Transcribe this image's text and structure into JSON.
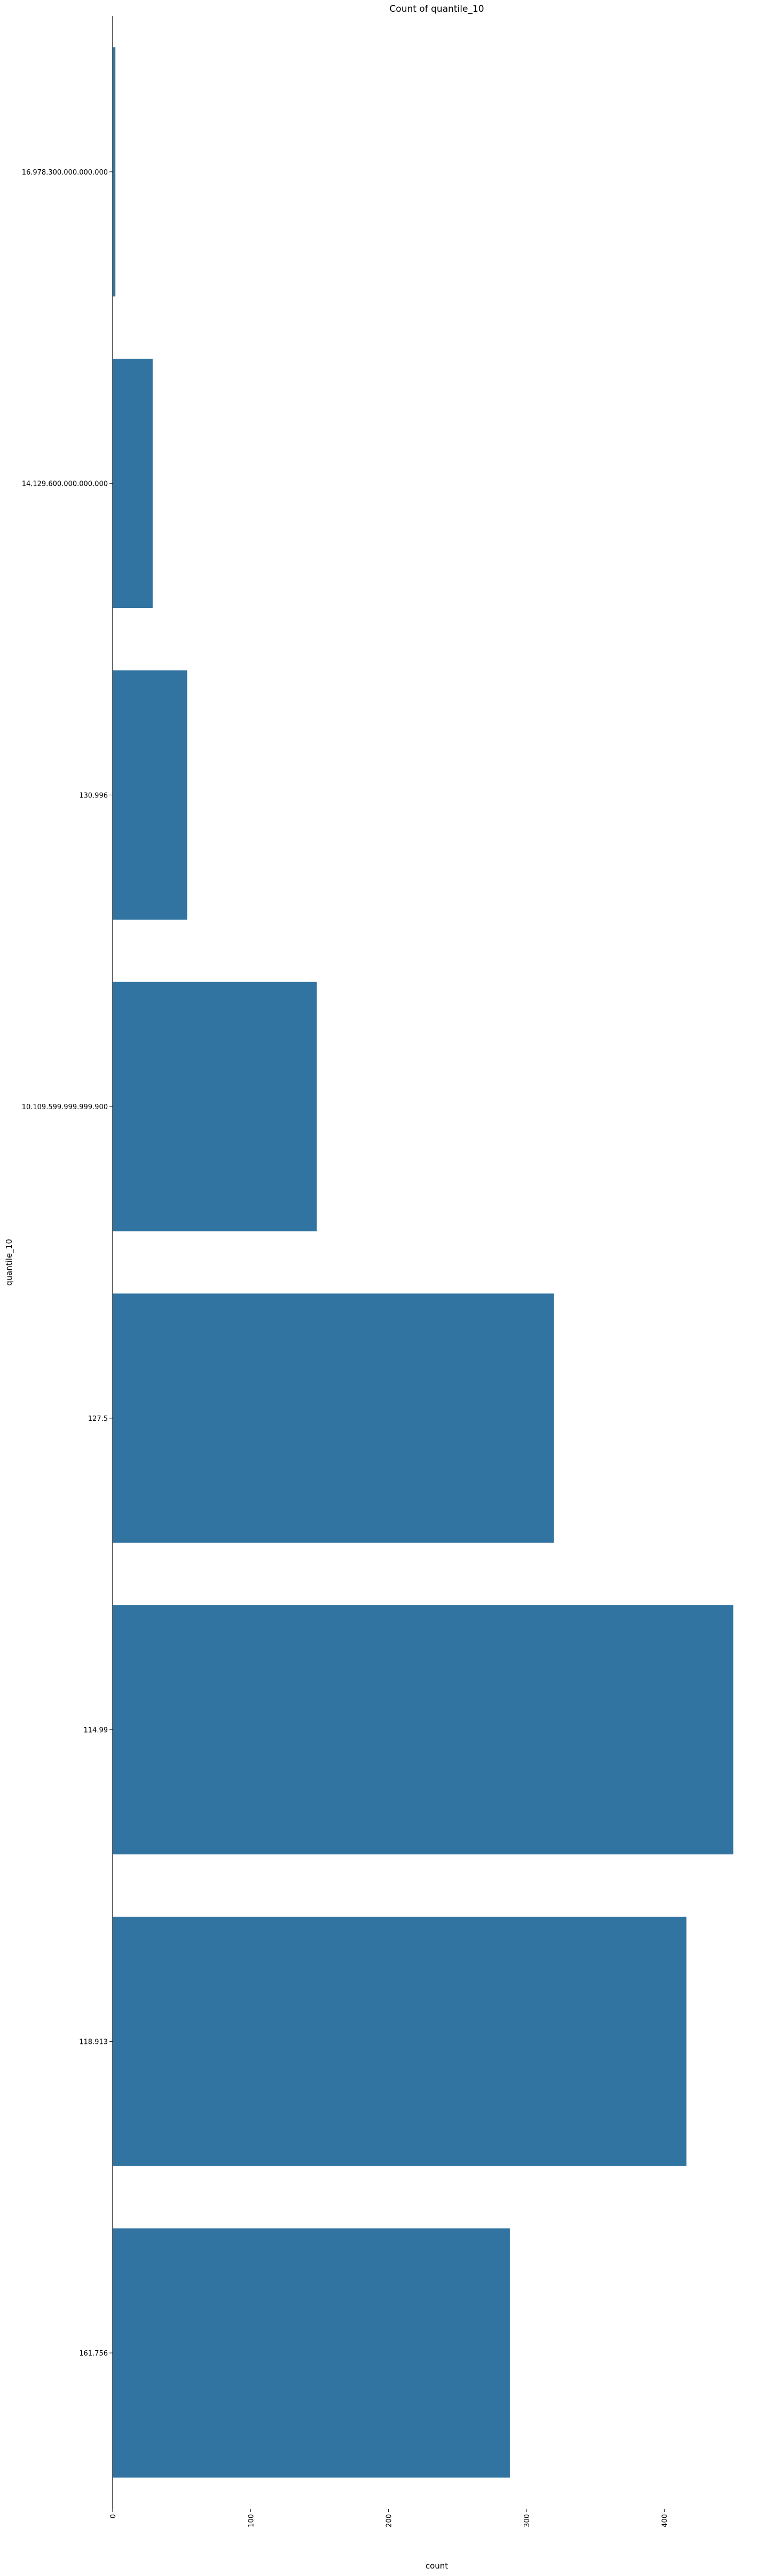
{
  "chart_data": {
    "type": "bar",
    "orientation": "horizontal",
    "title": "Count of quantile_10",
    "xlabel": "count",
    "ylabel": "quantile_10",
    "categories": [
      "16.978.300.000.000.000",
      "14.129.600.000.000.000",
      "130.996",
      "10.109.599.999.999.900",
      "127.5",
      "114.99",
      "118.913",
      "161.756"
    ],
    "values": [
      2,
      29,
      54,
      148,
      320,
      450,
      416,
      288
    ],
    "xlim": [
      0,
      470
    ],
    "xticks": [
      0,
      100,
      200,
      300,
      400
    ],
    "xtick_labels": [
      "0",
      "100",
      "200",
      "300",
      "400"
    ],
    "xtick_rotation": "vertical",
    "grid": false,
    "legend": "none",
    "bar_color": "#3274a1",
    "axis_color": "#000000",
    "background": "#ffffff"
  }
}
